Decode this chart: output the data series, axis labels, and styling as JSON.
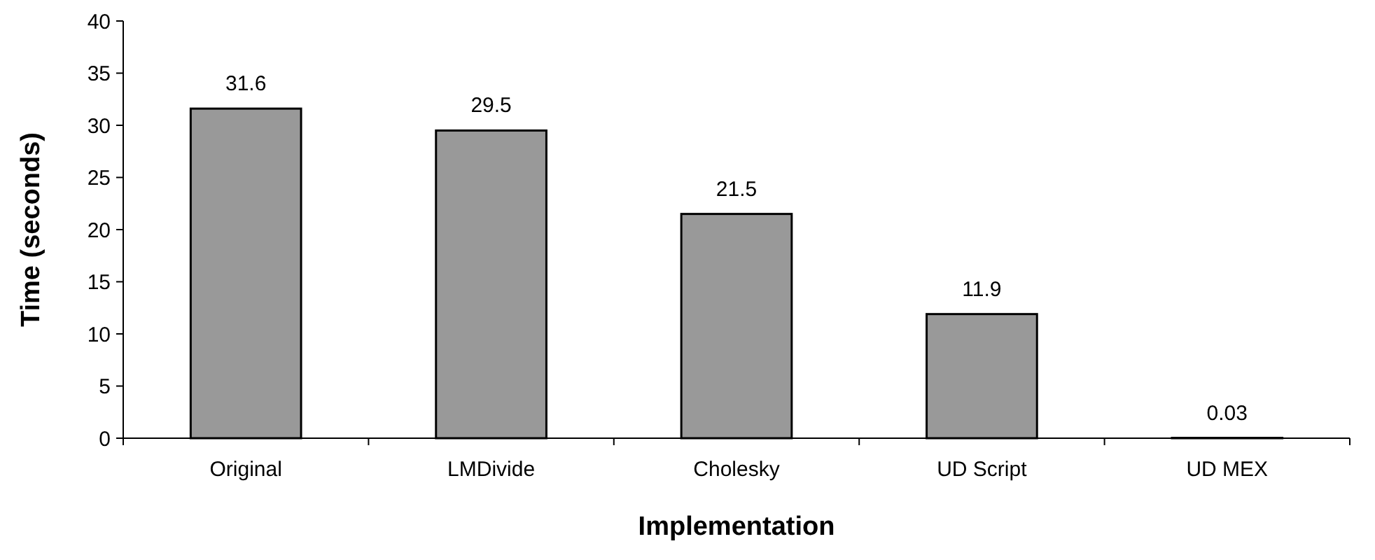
{
  "chart_data": {
    "type": "bar",
    "xlabel": "Implementation",
    "ylabel": "Time (seconds)",
    "categories": [
      "Original",
      "LMDivide",
      "Cholesky",
      "UD Script",
      "UD MEX"
    ],
    "values": [
      31.6,
      29.5,
      21.5,
      11.9,
      0.03
    ],
    "color": "#999999",
    "ylim": [
      0,
      40
    ],
    "yticks": [
      0,
      5,
      10,
      15,
      20,
      25,
      30,
      35,
      40
    ],
    "data_labels": true
  }
}
